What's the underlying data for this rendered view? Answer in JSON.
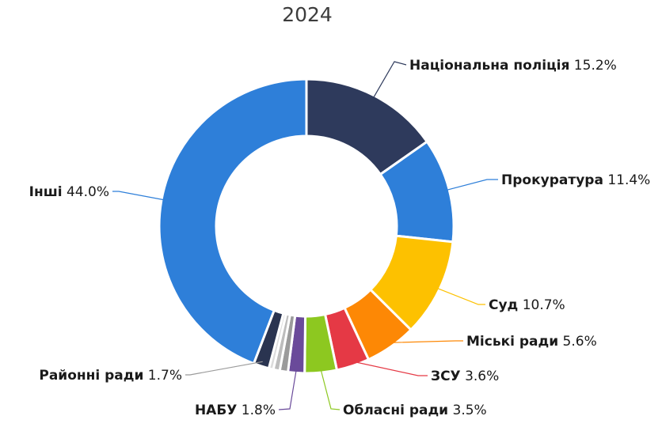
{
  "chart_data": {
    "type": "pie",
    "title": "2024",
    "unit": "%",
    "slices": [
      {
        "label": "Національна поліція",
        "value": 15.2,
        "color": "#2e3a5c"
      },
      {
        "label": "Прокуратура",
        "value": 11.4,
        "color": "#2e7fd9"
      },
      {
        "label": "Суд",
        "value": 10.7,
        "color": "#fdc100"
      },
      {
        "label": "Міські ради",
        "value": 5.6,
        "color": "#fd8805"
      },
      {
        "label": "ЗСУ",
        "value": 3.6,
        "color": "#e53945"
      },
      {
        "label": "Обласні ради",
        "value": 3.5,
        "color": "#8dc820"
      },
      {
        "label": "НАБУ",
        "value": 1.8,
        "color": "#6a4a9a"
      },
      {
        "label": "",
        "value": 0.9,
        "color": "#9b9b9b"
      },
      {
        "label": "",
        "value": 0.7,
        "color": "#bdbdbd"
      },
      {
        "label": "",
        "value": 0.5,
        "color": "#dcdcdc"
      },
      {
        "label": "Районні ради",
        "value": 1.7,
        "color": "#2a3450"
      },
      {
        "label": "Інші",
        "value": 44.0,
        "color": "#2e7fd9"
      }
    ],
    "legend": "none"
  }
}
